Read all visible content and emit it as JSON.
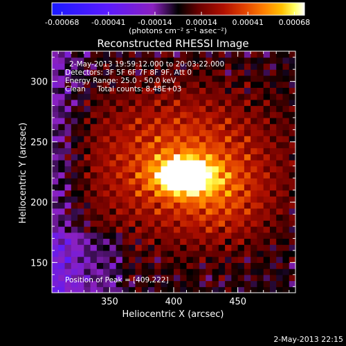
{
  "chart_data": {
    "type": "heatmap",
    "title": "Reconstructed RHESSI Image",
    "xlabel": "Heliocentric X (arcsec)",
    "ylabel": "Heliocentric Y (arcsec)",
    "xlim": [
      305,
      495
    ],
    "ylim": [
      125,
      325
    ],
    "x_ticks": [
      350,
      400,
      450
    ],
    "y_ticks": [
      150,
      200,
      250,
      300
    ],
    "x_minor_step": 10,
    "y_minor_step": 10,
    "colorbar": {
      "range": [
        -0.00068,
        0.00068
      ],
      "ticks": [
        "-0.00068",
        "-0.00041",
        "-0.00014",
        "0.00014",
        "0.00041",
        "0.00068"
      ],
      "unit_label": "(photons cm⁻² s⁻¹ asec⁻²)",
      "colormap": [
        "#1a1aff",
        "#5a1aff",
        "#8a20c0",
        "#000000",
        "#6a0000",
        "#b01000",
        "#e04000",
        "#ff8000",
        "#ffc000",
        "#ffff60",
        "#ffffff"
      ]
    },
    "annotations": {
      "time_range": "2-May-2013 19:59:12.000 to 20:03:22.000",
      "detectors": "Detectors: 3F 5F 6F 7F 8F 9F, Att 0",
      "energy_range": "Energy Range: 25.0 - 50.0 keV",
      "clean": "Clean     Total counts: 8.48E+03",
      "peak": "Position of Peak = [409,222]"
    },
    "peak_position": [
      409,
      222
    ],
    "timestamp": "2-May-2013 22:15"
  }
}
